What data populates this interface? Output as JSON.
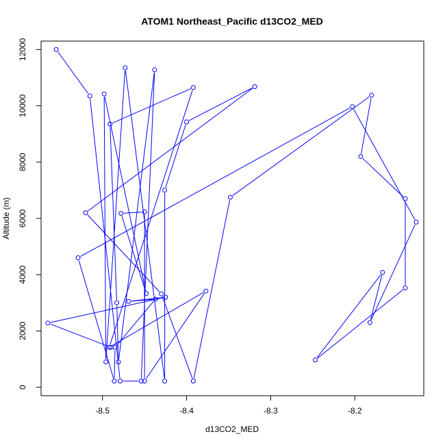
{
  "chart_data": {
    "type": "line",
    "title": "ATOM1 Northeast_Pacific d13CO2_MED",
    "xlabel": "d13CO2_MED",
    "ylabel": "Altitude (m)",
    "xlim": [
      -8.573,
      -8.118
    ],
    "ylim": [
      -300,
      12300
    ],
    "x_ticks": [
      -8.5,
      -8.4,
      -8.3,
      -8.2
    ],
    "x_tick_labels": [
      "-8.5",
      "-8.4",
      "-8.3",
      "-8.2"
    ],
    "y_ticks": [
      0,
      2000,
      4000,
      6000,
      8000,
      10000,
      12000
    ],
    "y_tick_labels": [
      "0",
      "2000",
      "4000",
      "6000",
      "8000",
      "10000",
      "12000"
    ],
    "grid": false,
    "series": [
      {
        "color": "#0000ff",
        "marker": "open-circle",
        "x": [
          -8.555,
          -8.515,
          -8.479,
          -8.454,
          -8.438,
          -8.481,
          -8.483,
          -8.491,
          -8.392,
          -8.492,
          -8.377,
          -8.45,
          -8.45,
          -8.478,
          -8.448,
          -8.498,
          -8.496,
          -8.473,
          -8.426,
          -8.426,
          -8.4,
          -8.319,
          -8.52,
          -8.43,
          -8.392,
          -8.348,
          -8.18,
          -8.193,
          -8.14,
          -8.14,
          -8.247,
          -8.167,
          -8.182,
          -8.127,
          -8.203,
          -8.529,
          -8.486,
          -8.485,
          -8.437,
          -8.469,
          -8.425,
          -8.565,
          -8.49
        ],
        "y": [
          12000,
          10350,
          220,
          220,
          11280,
          900,
          3000,
          9350,
          10650,
          1420,
          3420,
          220,
          6230,
          6180,
          3330,
          10420,
          900,
          11350,
          220,
          7000,
          9430,
          10680,
          6200,
          3320,
          220,
          6750,
          10380,
          8200,
          6700,
          3530,
          970,
          4080,
          2300,
          5870,
          9970,
          4600,
          220,
          1420,
          3130,
          3050,
          3200,
          2280,
          1420
        ]
      }
    ]
  }
}
